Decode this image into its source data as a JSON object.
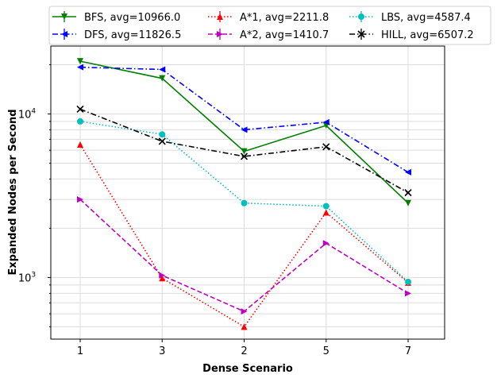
{
  "chart_data": {
    "type": "line",
    "xlabel": "Dense Scenario",
    "ylabel": "Expanded Nodes per Second",
    "yscale": "log",
    "ylim": [
      420,
      26000
    ],
    "grid": true,
    "legend_position": "top (above plot)",
    "categories": [
      "1",
      "3",
      "2",
      "5",
      "7"
    ],
    "y_tick_labels": [
      {
        "value": 1000,
        "base": "10",
        "exp": "3"
      },
      {
        "value": 10000,
        "base": "10",
        "exp": "4"
      }
    ],
    "series": [
      {
        "name": "BFS, avg=10966.0",
        "color": "#008000",
        "dash": "solid",
        "marker": "tri-down",
        "values": [
          21000,
          16500,
          5900,
          8500,
          2850
        ]
      },
      {
        "name": "DFS, avg=11826.5",
        "color": "#0000ff",
        "dash": "dashdot",
        "marker": "tri-left",
        "values": [
          19300,
          18700,
          8000,
          8900,
          4400
        ]
      },
      {
        "name": "A*1, avg=2211.8",
        "color": "#ff0000",
        "dash": "dotted",
        "marker": "tri-up",
        "values": [
          6500,
          990,
          500,
          2500,
          930
        ]
      },
      {
        "name": "A*2, avg=1410.7",
        "color": "#bf00bf",
        "dash": "dashed",
        "marker": "tri-right",
        "values": [
          3000,
          1030,
          620,
          1620,
          800
        ]
      },
      {
        "name": "LBS, avg=4587.4",
        "color": "#00bfbf",
        "dash": "dotted",
        "marker": "circle",
        "values": [
          9000,
          7500,
          2850,
          2730,
          940
        ]
      },
      {
        "name": "HILL, avg=6507.2",
        "color": "#000000",
        "dash": "dashdot",
        "marker": "x",
        "values": [
          10700,
          6800,
          5500,
          6300,
          3300
        ]
      }
    ]
  }
}
